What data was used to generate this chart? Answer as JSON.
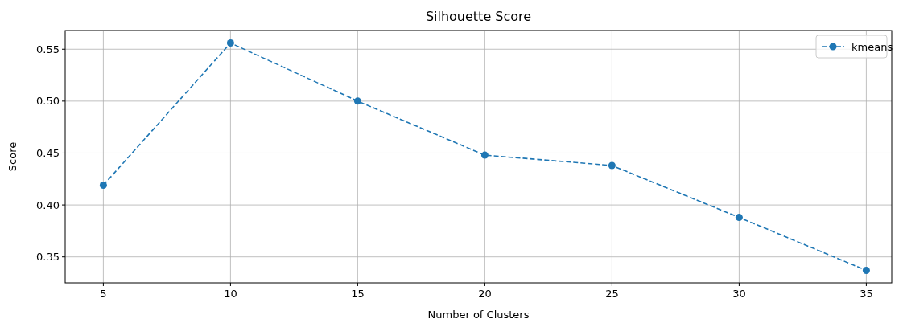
{
  "chart_data": {
    "type": "line",
    "title": "Silhouette Score",
    "xlabel": "Number of Clusters",
    "ylabel": "Score",
    "x": [
      5,
      10,
      15,
      20,
      25,
      30,
      35
    ],
    "series": [
      {
        "name": "kmeans",
        "color": "#1f77b4",
        "values": [
          0.419,
          0.556,
          0.5,
          0.448,
          0.438,
          0.388,
          0.337
        ]
      }
    ],
    "xlim": [
      3.5,
      36
    ],
    "xticks": [
      5,
      10,
      15,
      20,
      25,
      30,
      35
    ],
    "ylim": [
      0.325,
      0.568
    ],
    "yticks": [
      {
        "value": 0.35,
        "label": "0.35"
      },
      {
        "value": 0.4,
        "label": "0.40"
      },
      {
        "value": 0.45,
        "label": "0.45"
      },
      {
        "value": 0.5,
        "label": "0.50"
      },
      {
        "value": 0.55,
        "label": "0.55"
      }
    ],
    "grid": true,
    "legend": "top right",
    "marker": "circle",
    "line_style": "dashed"
  }
}
